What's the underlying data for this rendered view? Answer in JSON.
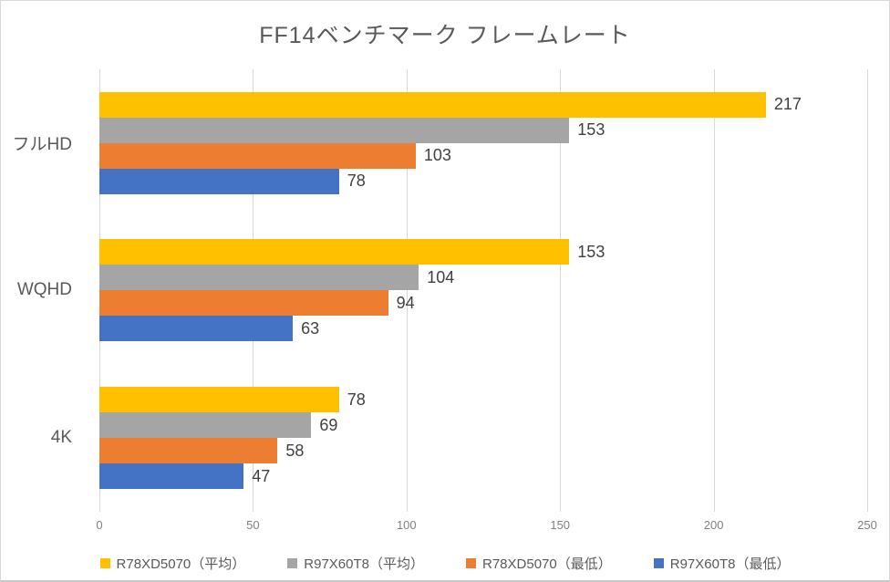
{
  "chart_data": {
    "type": "bar",
    "orientation": "horizontal",
    "title": "FF14ベンチマーク フレームレート",
    "categories": [
      "フルHD",
      "WQHD",
      "4K"
    ],
    "series": [
      {
        "name": "R78XD5070（平均）",
        "color": "#FFC000",
        "values": [
          217,
          153,
          78
        ]
      },
      {
        "name": "R97X60T8（平均）",
        "color": "#A5A5A5",
        "values": [
          153,
          104,
          69
        ]
      },
      {
        "name": "R78XD5070（最低）",
        "color": "#ED7D31",
        "values": [
          103,
          94,
          58
        ]
      },
      {
        "name": "R97X60T8（最低）",
        "color": "#4472C4",
        "values": [
          78,
          63,
          47
        ]
      }
    ],
    "xlim": [
      0,
      250
    ],
    "xticks": [
      0,
      50,
      100,
      150,
      200,
      250
    ],
    "grid": "vertical",
    "legend_position": "bottom",
    "data_labels": true
  },
  "colors": {
    "background": "#FFFFFF",
    "title_text": "#595959",
    "category_text": "#595959",
    "data_label_text": "#404040",
    "tick_text": "#808080",
    "gridline": "#D9D9D9",
    "frame_border": "#D9D9D9"
  }
}
